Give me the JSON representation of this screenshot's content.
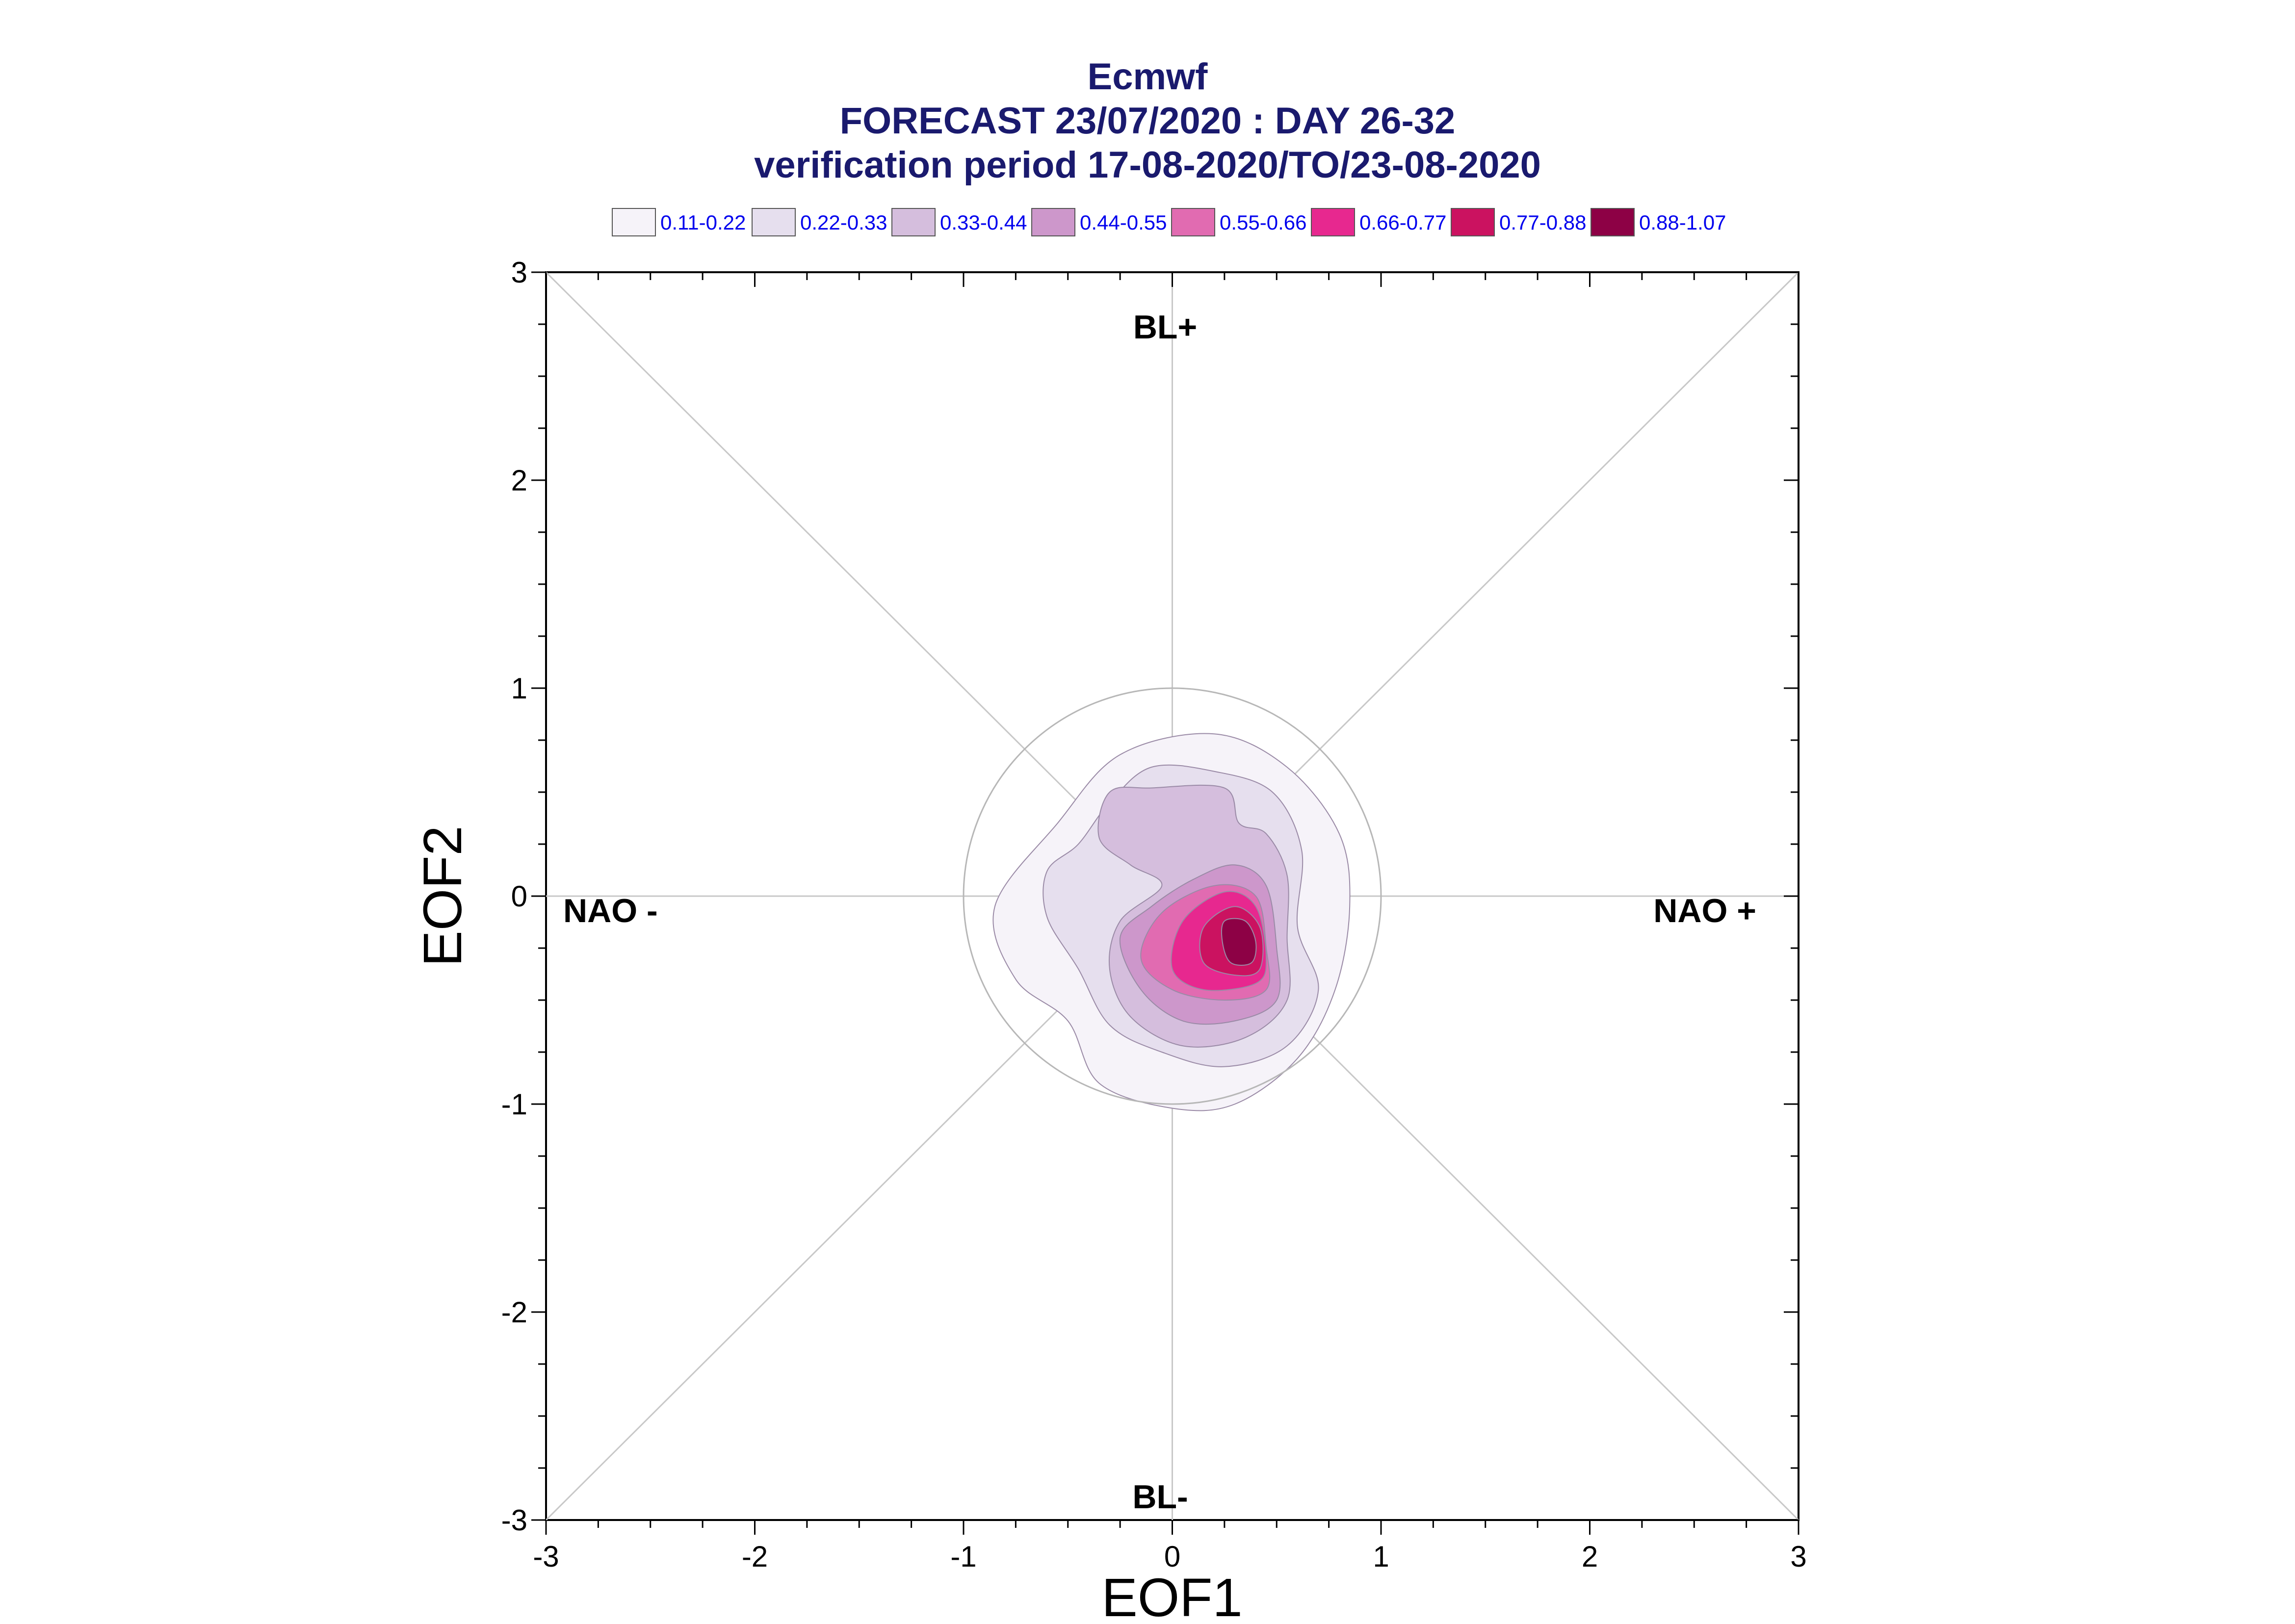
{
  "title_lines": [
    "Ecmwf",
    "FORECAST 23/07/2020 : DAY 26-32",
    "verification period 17-08-2020/TO/23-08-2020"
  ],
  "legend": [
    {
      "label": "0.11-0.22",
      "color": "#f6f3f9"
    },
    {
      "label": "0.22-0.33",
      "color": "#e6dfee"
    },
    {
      "label": "0.33-0.44",
      "color": "#d5bedd"
    },
    {
      "label": "0.44-0.55",
      "color": "#cd97cb"
    },
    {
      "label": "0.55-0.66",
      "color": "#e16bb1"
    },
    {
      "label": "0.66-0.77",
      "color": "#e7288f"
    },
    {
      "label": "0.77-0.88",
      "color": "#cb1260"
    },
    {
      "label": "0.88-1.07",
      "color": "#8d0145"
    }
  ],
  "region_labels": {
    "top": "BL+",
    "bottom": "BL-",
    "left": "NAO -",
    "right": "NAO +"
  },
  "chart_data": {
    "type": "contour",
    "xlabel": "EOF1",
    "ylabel": "EOF2",
    "xlim": [
      -3,
      3
    ],
    "ylim": [
      -3,
      3
    ],
    "xticks": [
      -3,
      -2,
      -1,
      0,
      1,
      2,
      3
    ],
    "yticks": [
      -3,
      -2,
      -1,
      0,
      1,
      2,
      3
    ],
    "reference_circle_radius": 1,
    "contours": [
      {
        "level": "0.11-0.22",
        "points": [
          [
            -0.55,
            0.35
          ],
          [
            -0.25,
            0.68
          ],
          [
            0.2,
            0.78
          ],
          [
            0.55,
            0.62
          ],
          [
            0.8,
            0.3
          ],
          [
            0.85,
            -0.05
          ],
          [
            0.78,
            -0.45
          ],
          [
            0.6,
            -0.78
          ],
          [
            0.3,
            -1.0
          ],
          [
            0.0,
            -1.02
          ],
          [
            -0.35,
            -0.9
          ],
          [
            -0.5,
            -0.6
          ],
          [
            -0.75,
            -0.4
          ],
          [
            -0.85,
            -0.05
          ]
        ]
      },
      {
        "level": "0.22-0.33",
        "points": [
          [
            -0.3,
            0.45
          ],
          [
            -0.1,
            0.62
          ],
          [
            0.2,
            0.6
          ],
          [
            0.48,
            0.5
          ],
          [
            0.62,
            0.22
          ],
          [
            0.6,
            -0.15
          ],
          [
            0.7,
            -0.45
          ],
          [
            0.55,
            -0.72
          ],
          [
            0.25,
            -0.82
          ],
          [
            -0.05,
            -0.75
          ],
          [
            -0.3,
            -0.62
          ],
          [
            -0.45,
            -0.35
          ],
          [
            -0.6,
            -0.1
          ],
          [
            -0.6,
            0.12
          ],
          [
            -0.45,
            0.25
          ]
        ]
      },
      {
        "level": "0.33-0.44",
        "points": [
          [
            -0.35,
            0.28
          ],
          [
            -0.3,
            0.5
          ],
          [
            -0.1,
            0.52
          ],
          [
            0.25,
            0.52
          ],
          [
            0.32,
            0.35
          ],
          [
            0.45,
            0.3
          ],
          [
            0.55,
            0.1
          ],
          [
            0.55,
            -0.2
          ],
          [
            0.55,
            -0.5
          ],
          [
            0.35,
            -0.68
          ],
          [
            0.05,
            -0.72
          ],
          [
            -0.2,
            -0.58
          ],
          [
            -0.3,
            -0.35
          ],
          [
            -0.25,
            -0.12
          ],
          [
            -0.05,
            0.05
          ],
          [
            -0.2,
            0.15
          ]
        ]
      },
      {
        "level": "0.44-0.55",
        "points": [
          [
            -0.1,
            -0.05
          ],
          [
            0.1,
            0.08
          ],
          [
            0.3,
            0.15
          ],
          [
            0.45,
            0.05
          ],
          [
            0.5,
            -0.25
          ],
          [
            0.5,
            -0.5
          ],
          [
            0.3,
            -0.6
          ],
          [
            0.05,
            -0.6
          ],
          [
            -0.15,
            -0.45
          ],
          [
            -0.25,
            -0.2
          ]
        ]
      },
      {
        "level": "0.55-0.66",
        "points": [
          [
            -0.05,
            -0.08
          ],
          [
            0.2,
            0.05
          ],
          [
            0.4,
            0.0
          ],
          [
            0.45,
            -0.25
          ],
          [
            0.45,
            -0.45
          ],
          [
            0.25,
            -0.5
          ],
          [
            0.0,
            -0.45
          ],
          [
            -0.15,
            -0.3
          ]
        ]
      },
      {
        "level": "0.66-0.77",
        "points": [
          [
            0.05,
            -0.12
          ],
          [
            0.25,
            0.02
          ],
          [
            0.4,
            -0.05
          ],
          [
            0.45,
            -0.3
          ],
          [
            0.4,
            -0.42
          ],
          [
            0.15,
            -0.45
          ],
          [
            0.0,
            -0.35
          ]
        ]
      },
      {
        "level": "0.77-0.88",
        "points": [
          [
            0.15,
            -0.15
          ],
          [
            0.3,
            -0.05
          ],
          [
            0.42,
            -0.15
          ],
          [
            0.42,
            -0.35
          ],
          [
            0.3,
            -0.38
          ],
          [
            0.15,
            -0.32
          ]
        ]
      },
      {
        "level": "0.88-1.07",
        "points": [
          [
            0.25,
            -0.12
          ],
          [
            0.35,
            -0.12
          ],
          [
            0.4,
            -0.22
          ],
          [
            0.38,
            -0.32
          ],
          [
            0.28,
            -0.32
          ],
          [
            0.24,
            -0.22
          ]
        ]
      }
    ]
  }
}
